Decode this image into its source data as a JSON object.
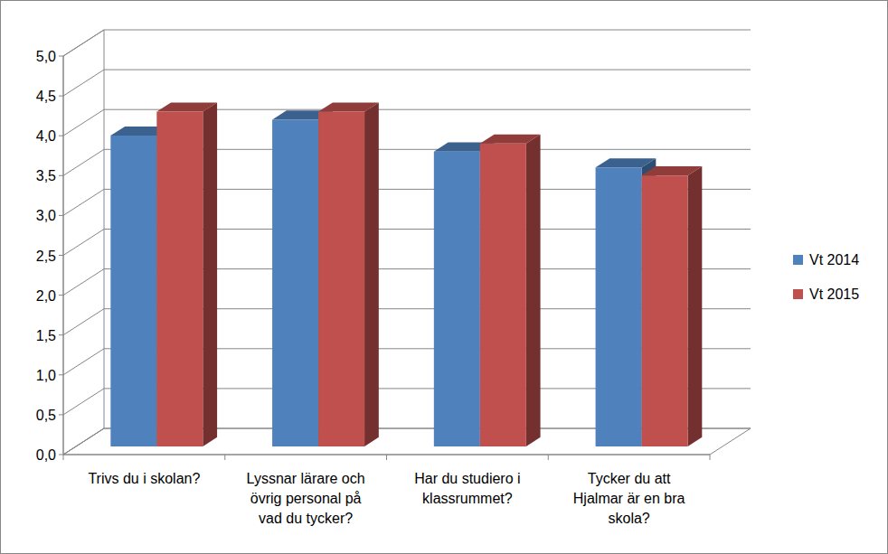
{
  "chart_data": {
    "type": "bar",
    "categories": [
      "Trivs du i skolan?",
      "Lyssnar lärare och övrig personal på vad du tycker?",
      "Har du studiero i klassrummet?",
      "Tycker du att Hjalmar är en bra skola?"
    ],
    "series": [
      {
        "name": "Vt 2014",
        "color": "#4f81bd",
        "values": [
          3.9,
          4.1,
          3.7,
          3.5
        ]
      },
      {
        "name": "Vt 2015",
        "color": "#c0504d",
        "values": [
          4.2,
          4.2,
          3.8,
          3.4
        ]
      }
    ],
    "ylim": [
      0,
      5
    ],
    "yticks": [
      {
        "value": 0,
        "label": "0,0"
      },
      {
        "value": 0.5,
        "label": "0,5"
      },
      {
        "value": 1,
        "label": "1,0"
      },
      {
        "value": 1.5,
        "label": "1,5"
      },
      {
        "value": 2,
        "label": "2,0"
      },
      {
        "value": 2.5,
        "label": "2,5"
      },
      {
        "value": 3,
        "label": "3,0"
      },
      {
        "value": 3.5,
        "label": "3,5"
      },
      {
        "value": 4,
        "label": "4,0"
      },
      {
        "value": 4.5,
        "label": "4,5"
      },
      {
        "value": 5,
        "label": "5,0"
      }
    ],
    "grid": true,
    "legend": "right"
  }
}
